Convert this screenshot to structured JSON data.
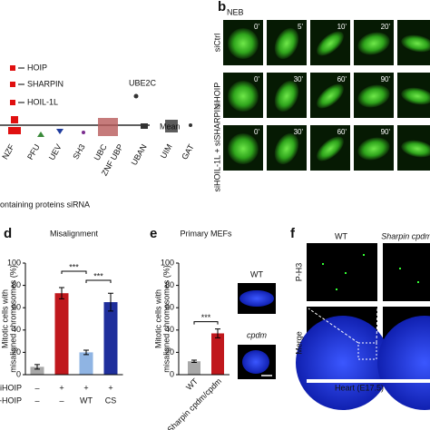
{
  "panel_a": {
    "categories": [
      "NZF",
      "PFU",
      "UEV",
      "SH3",
      "UBC",
      "ZNF UBP",
      "UBAN",
      "UIM",
      "GAT"
    ],
    "annotations": [
      "HOIP",
      "SHARPIN",
      "HOIL-1L",
      "UBE2C"
    ],
    "mean_label": "Mean",
    "x_label": "ontaining proteins siRNA"
  },
  "panel_b": {
    "letter": "b",
    "title": "NEB",
    "rows": [
      {
        "label": "siCtrl",
        "times": [
          "0'",
          "5'",
          "10'",
          "20'"
        ]
      },
      {
        "label": "siHOIP",
        "times": [
          "0'",
          "30'",
          "60'",
          "90'"
        ]
      },
      {
        "label": "siHOIL-1L + siSHARPIN",
        "times": [
          "0'",
          "30'",
          "60'",
          "90'"
        ]
      }
    ]
  },
  "chart_data": [
    {
      "type": "bar",
      "letter": "d",
      "title": "Misalignment",
      "y_label": [
        "Mitotic cells with",
        "misaligned chromosomes (%)"
      ],
      "categories": [
        null,
        null,
        null,
        null
      ],
      "values": [
        7,
        73,
        20,
        65
      ],
      "errors": [
        2,
        5,
        2,
        8
      ],
      "colors": [
        "#a8a8a8",
        "#c0181d",
        "#8fb4e3",
        "#1f2f9c"
      ],
      "ylim": [
        0,
        100
      ],
      "yticks": [
        0,
        20,
        40,
        60,
        80,
        100
      ],
      "condition_rows": [
        {
          "label": "siHOIP",
          "values": [
            "–",
            "+",
            "+",
            "+"
          ]
        },
        {
          "label": "GFP-HOIP",
          "values": [
            "–",
            "–",
            "WT",
            "CS"
          ]
        }
      ],
      "significance": [
        {
          "label": "***",
          "from": 1,
          "to": 2
        },
        {
          "label": "***",
          "from": 2,
          "to": 3
        }
      ]
    },
    {
      "type": "bar",
      "letter": "e",
      "title": "Primary MEFs",
      "y_label": [
        "Mitotic cells with",
        "misaligned chromosomes (%)"
      ],
      "categories": [
        "WT",
        "Sharpin cpdm/cpdm"
      ],
      "values": [
        12,
        37
      ],
      "errors": [
        1,
        4
      ],
      "colors": [
        "#a8a8a8",
        "#c0181d"
      ],
      "ylim": [
        0,
        100
      ],
      "yticks": [
        0,
        20,
        40,
        60,
        80,
        100
      ],
      "significance": [
        {
          "label": "***",
          "from": 0,
          "to": 1
        }
      ],
      "image_labels": [
        "WT",
        "cpdm"
      ]
    }
  ],
  "panel_f": {
    "letter": "f",
    "columns": [
      "WT",
      "Sharpin cpdm"
    ],
    "rows": [
      "P-H3",
      "Merge"
    ],
    "caption": "Heart (E17.5)"
  }
}
